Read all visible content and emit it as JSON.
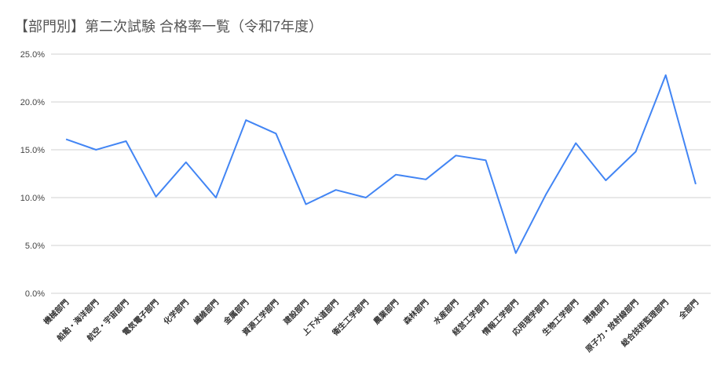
{
  "chart_data": {
    "type": "line",
    "title": "【部門別】第二次試験 合格率一覧（令和7年度）",
    "categories": [
      "機械部門",
      "船舶・海洋部門",
      "航空・宇宙部門",
      "電気電子部門",
      "化学部門",
      "繊維部門",
      "金属部門",
      "資源工学部門",
      "建設部門",
      "上下水道部門",
      "衛生工学部門",
      "農業部門",
      "森林部門",
      "水産部門",
      "経営工学部門",
      "情報工学部門",
      "応用理学部門",
      "生物工学部門",
      "環境部門",
      "原子力・放射線部門",
      "総合技術監理部門",
      "全部門"
    ],
    "values": [
      16.1,
      15.0,
      15.9,
      10.1,
      13.7,
      10.0,
      18.1,
      16.7,
      9.3,
      10.8,
      10.0,
      12.4,
      11.9,
      14.4,
      13.9,
      4.2,
      10.3,
      15.7,
      11.8,
      14.8,
      22.8,
      11.4
    ],
    "color": "#4285f4",
    "ylim": [
      0,
      25
    ],
    "yticks": [
      {
        "value": 0,
        "label": "0.0%"
      },
      {
        "value": 5,
        "label": "5.0%"
      },
      {
        "value": 10,
        "label": "10.0%"
      },
      {
        "value": 15,
        "label": "15.0%"
      },
      {
        "value": 20,
        "label": "20.0%"
      },
      {
        "value": 25,
        "label": "25.0%"
      }
    ],
    "grid": true
  }
}
